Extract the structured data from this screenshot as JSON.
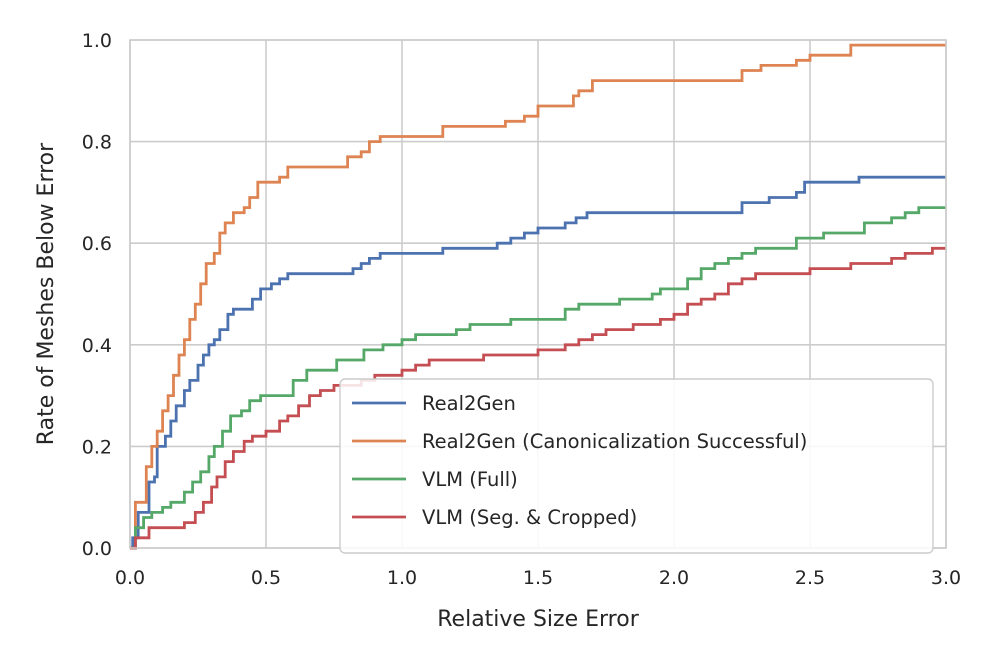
{
  "chart_data": {
    "type": "line",
    "title": "",
    "xlabel": "Relative Size Error",
    "ylabel": "Rate of Meshes Below Error",
    "xlim": [
      0.0,
      3.0
    ],
    "ylim": [
      0.0,
      1.0
    ],
    "grid": true,
    "legend_position": "lower-right",
    "x_ticks": [
      {
        "value": 0.0,
        "label": "0.0"
      },
      {
        "value": 0.5,
        "label": "0.5"
      },
      {
        "value": 1.0,
        "label": "1.0"
      },
      {
        "value": 1.5,
        "label": "1.5"
      },
      {
        "value": 2.0,
        "label": "2.0"
      },
      {
        "value": 2.5,
        "label": "2.5"
      },
      {
        "value": 3.0,
        "label": "3.0"
      }
    ],
    "y_ticks": [
      {
        "value": 0.0,
        "label": "0.0"
      },
      {
        "value": 0.2,
        "label": "0.2"
      },
      {
        "value": 0.4,
        "label": "0.4"
      },
      {
        "value": 0.6,
        "label": "0.6"
      },
      {
        "value": 0.8,
        "label": "0.8"
      },
      {
        "value": 1.0,
        "label": "1.0"
      }
    ],
    "series": [
      {
        "name": "Real2Gen",
        "color": "#4c72b0",
        "points": [
          [
            0,
            0
          ],
          [
            0.01,
            0.02
          ],
          [
            0.03,
            0.07
          ],
          [
            0.06,
            0.07
          ],
          [
            0.07,
            0.13
          ],
          [
            0.09,
            0.14
          ],
          [
            0.1,
            0.2
          ],
          [
            0.13,
            0.22
          ],
          [
            0.15,
            0.25
          ],
          [
            0.17,
            0.28
          ],
          [
            0.2,
            0.31
          ],
          [
            0.22,
            0.33
          ],
          [
            0.25,
            0.36
          ],
          [
            0.27,
            0.38
          ],
          [
            0.29,
            0.4
          ],
          [
            0.31,
            0.41
          ],
          [
            0.33,
            0.43
          ],
          [
            0.36,
            0.46
          ],
          [
            0.38,
            0.47
          ],
          [
            0.42,
            0.47
          ],
          [
            0.45,
            0.49
          ],
          [
            0.48,
            0.51
          ],
          [
            0.52,
            0.52
          ],
          [
            0.55,
            0.53
          ],
          [
            0.58,
            0.54
          ],
          [
            0.8,
            0.54
          ],
          [
            0.82,
            0.55
          ],
          [
            0.85,
            0.56
          ],
          [
            0.88,
            0.57
          ],
          [
            0.92,
            0.58
          ],
          [
            1.12,
            0.58
          ],
          [
            1.15,
            0.59
          ],
          [
            1.35,
            0.6
          ],
          [
            1.4,
            0.61
          ],
          [
            1.45,
            0.62
          ],
          [
            1.5,
            0.63
          ],
          [
            1.6,
            0.64
          ],
          [
            1.64,
            0.65
          ],
          [
            1.68,
            0.66
          ],
          [
            2.22,
            0.66
          ],
          [
            2.25,
            0.68
          ],
          [
            2.35,
            0.69
          ],
          [
            2.45,
            0.7
          ],
          [
            2.48,
            0.72
          ],
          [
            2.65,
            0.72
          ],
          [
            2.68,
            0.73
          ],
          [
            3.0,
            0.73
          ]
        ]
      },
      {
        "name": "Real2Gen (Canonicalization Successful)",
        "color": "#dd8452",
        "points": [
          [
            0,
            0
          ],
          [
            0.02,
            0.09
          ],
          [
            0.06,
            0.16
          ],
          [
            0.08,
            0.2
          ],
          [
            0.1,
            0.23
          ],
          [
            0.12,
            0.27
          ],
          [
            0.14,
            0.3
          ],
          [
            0.16,
            0.34
          ],
          [
            0.18,
            0.38
          ],
          [
            0.2,
            0.41
          ],
          [
            0.22,
            0.45
          ],
          [
            0.24,
            0.48
          ],
          [
            0.26,
            0.52
          ],
          [
            0.28,
            0.56
          ],
          [
            0.31,
            0.58
          ],
          [
            0.33,
            0.62
          ],
          [
            0.35,
            0.64
          ],
          [
            0.38,
            0.66
          ],
          [
            0.42,
            0.67
          ],
          [
            0.44,
            0.69
          ],
          [
            0.47,
            0.72
          ],
          [
            0.52,
            0.72
          ],
          [
            0.55,
            0.73
          ],
          [
            0.58,
            0.75
          ],
          [
            0.78,
            0.75
          ],
          [
            0.8,
            0.77
          ],
          [
            0.85,
            0.78
          ],
          [
            0.88,
            0.8
          ],
          [
            0.92,
            0.81
          ],
          [
            1.1,
            0.81
          ],
          [
            1.15,
            0.83
          ],
          [
            1.35,
            0.83
          ],
          [
            1.38,
            0.84
          ],
          [
            1.45,
            0.85
          ],
          [
            1.5,
            0.87
          ],
          [
            1.6,
            0.87
          ],
          [
            1.63,
            0.89
          ],
          [
            1.65,
            0.9
          ],
          [
            1.7,
            0.92
          ],
          [
            2.2,
            0.92
          ],
          [
            2.25,
            0.94
          ],
          [
            2.32,
            0.95
          ],
          [
            2.45,
            0.96
          ],
          [
            2.5,
            0.97
          ],
          [
            2.6,
            0.97
          ],
          [
            2.65,
            0.99
          ],
          [
            3.0,
            0.99
          ]
        ]
      },
      {
        "name": "VLM (Full)",
        "color": "#55a868",
        "points": [
          [
            0,
            0
          ],
          [
            0.02,
            0.04
          ],
          [
            0.05,
            0.06
          ],
          [
            0.08,
            0.07
          ],
          [
            0.12,
            0.08
          ],
          [
            0.15,
            0.09
          ],
          [
            0.2,
            0.11
          ],
          [
            0.23,
            0.13
          ],
          [
            0.26,
            0.15
          ],
          [
            0.29,
            0.18
          ],
          [
            0.31,
            0.2
          ],
          [
            0.34,
            0.23
          ],
          [
            0.37,
            0.26
          ],
          [
            0.41,
            0.27
          ],
          [
            0.44,
            0.29
          ],
          [
            0.48,
            0.3
          ],
          [
            0.56,
            0.3
          ],
          [
            0.6,
            0.33
          ],
          [
            0.65,
            0.35
          ],
          [
            0.72,
            0.35
          ],
          [
            0.76,
            0.37
          ],
          [
            0.82,
            0.37
          ],
          [
            0.86,
            0.39
          ],
          [
            0.93,
            0.4
          ],
          [
            1.0,
            0.41
          ],
          [
            1.05,
            0.42
          ],
          [
            1.15,
            0.42
          ],
          [
            1.2,
            0.43
          ],
          [
            1.25,
            0.44
          ],
          [
            1.4,
            0.45
          ],
          [
            1.55,
            0.45
          ],
          [
            1.6,
            0.47
          ],
          [
            1.65,
            0.48
          ],
          [
            1.8,
            0.49
          ],
          [
            1.9,
            0.49
          ],
          [
            1.92,
            0.5
          ],
          [
            1.95,
            0.51
          ],
          [
            2.0,
            0.51
          ],
          [
            2.05,
            0.53
          ],
          [
            2.1,
            0.55
          ],
          [
            2.15,
            0.56
          ],
          [
            2.2,
            0.57
          ],
          [
            2.25,
            0.58
          ],
          [
            2.3,
            0.59
          ],
          [
            2.4,
            0.59
          ],
          [
            2.45,
            0.61
          ],
          [
            2.5,
            0.61
          ],
          [
            2.55,
            0.62
          ],
          [
            2.65,
            0.62
          ],
          [
            2.7,
            0.64
          ],
          [
            2.8,
            0.65
          ],
          [
            2.85,
            0.66
          ],
          [
            2.9,
            0.67
          ],
          [
            3.0,
            0.67
          ]
        ]
      },
      {
        "name": "VLM (Seg. & Cropped)",
        "color": "#c44e52",
        "points": [
          [
            0,
            0
          ],
          [
            0.02,
            0.02
          ],
          [
            0.05,
            0.02
          ],
          [
            0.07,
            0.04
          ],
          [
            0.16,
            0.04
          ],
          [
            0.2,
            0.05
          ],
          [
            0.24,
            0.07
          ],
          [
            0.27,
            0.09
          ],
          [
            0.3,
            0.12
          ],
          [
            0.32,
            0.14
          ],
          [
            0.35,
            0.17
          ],
          [
            0.38,
            0.19
          ],
          [
            0.42,
            0.21
          ],
          [
            0.45,
            0.22
          ],
          [
            0.5,
            0.23
          ],
          [
            0.55,
            0.25
          ],
          [
            0.58,
            0.26
          ],
          [
            0.62,
            0.28
          ],
          [
            0.66,
            0.3
          ],
          [
            0.7,
            0.31
          ],
          [
            0.75,
            0.32
          ],
          [
            0.8,
            0.32
          ],
          [
            0.85,
            0.33
          ],
          [
            0.9,
            0.34
          ],
          [
            1.0,
            0.35
          ],
          [
            1.05,
            0.36
          ],
          [
            1.1,
            0.37
          ],
          [
            1.25,
            0.37
          ],
          [
            1.3,
            0.38
          ],
          [
            1.45,
            0.38
          ],
          [
            1.5,
            0.39
          ],
          [
            1.6,
            0.4
          ],
          [
            1.65,
            0.41
          ],
          [
            1.7,
            0.42
          ],
          [
            1.75,
            0.43
          ],
          [
            1.85,
            0.44
          ],
          [
            1.95,
            0.45
          ],
          [
            2.0,
            0.46
          ],
          [
            2.05,
            0.48
          ],
          [
            2.1,
            0.49
          ],
          [
            2.15,
            0.5
          ],
          [
            2.2,
            0.52
          ],
          [
            2.25,
            0.53
          ],
          [
            2.3,
            0.54
          ],
          [
            2.5,
            0.55
          ],
          [
            2.6,
            0.55
          ],
          [
            2.65,
            0.56
          ],
          [
            2.8,
            0.57
          ],
          [
            2.85,
            0.58
          ],
          [
            2.95,
            0.59
          ],
          [
            3.0,
            0.59
          ]
        ]
      }
    ]
  }
}
